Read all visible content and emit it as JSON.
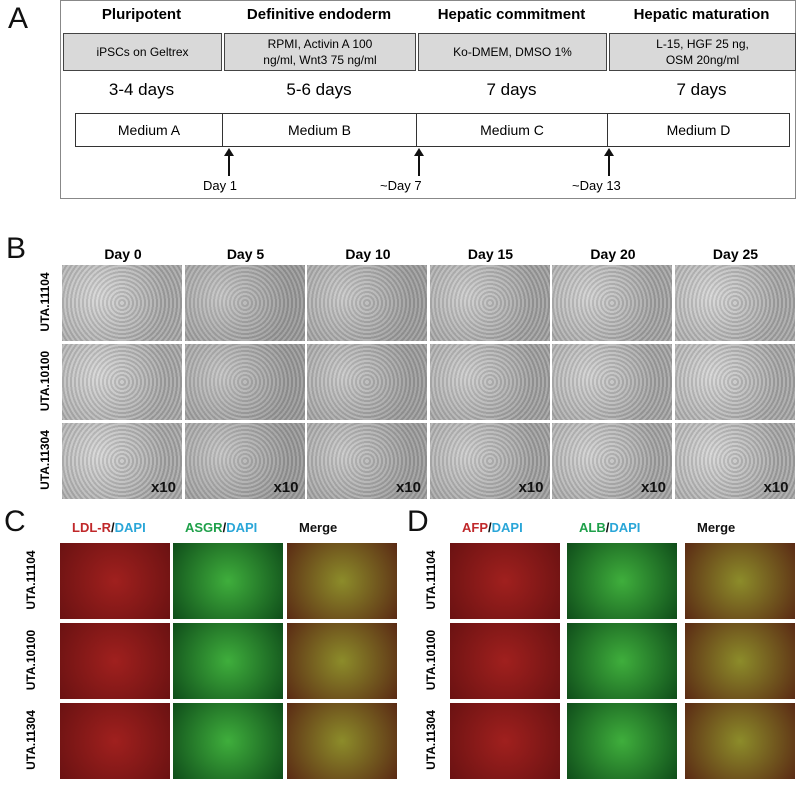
{
  "panel_a": {
    "label": "A",
    "stages": [
      "Pluripotent",
      "Definitive endoderm",
      "Hepatic commitment",
      "Hepatic maturation"
    ],
    "conditions": [
      [
        "iPSCs on Geltrex"
      ],
      [
        "RPMI, Activin A 100",
        "ng/ml, Wnt3 75  ng/ml"
      ],
      [
        "Ko-DMEM,  DMSO 1%"
      ],
      [
        "L-15, HGF 25 ng,",
        "OSM 20ng/ml"
      ]
    ],
    "durations": [
      "3-4 days",
      "5-6 days",
      "7 days",
      "7 days"
    ],
    "media": [
      "Medium A",
      "Medium B",
      "Medium C",
      "Medium D"
    ],
    "timepoints": [
      "Day 1",
      "~Day 7",
      "~Day 13"
    ]
  },
  "panel_b": {
    "label": "B",
    "days": [
      "Day 0",
      "Day 5",
      "Day 10",
      "Day 15",
      "Day 20",
      "Day 25"
    ],
    "rows": [
      "UTA.11104",
      "UTA.10100",
      "UTA.11304"
    ],
    "magnification": "x10"
  },
  "panel_c": {
    "label": "C",
    "cols": [
      {
        "marker": "LDL-R",
        "sep": "/",
        "stain": "DAPI"
      },
      {
        "marker": "ASGR",
        "sep": "/",
        "stain": "DAPI"
      },
      {
        "marker": "Merge"
      }
    ],
    "rows": [
      "UTA.11104",
      "UTA.10100",
      "UTA.11304"
    ]
  },
  "panel_d": {
    "label": "D",
    "cols": [
      {
        "marker": "AFP",
        "sep": "/",
        "stain": "DAPI"
      },
      {
        "marker": "ALB",
        "sep": "/",
        "stain": "DAPI"
      },
      {
        "marker": "Merge"
      }
    ],
    "rows": [
      "UTA.11104",
      "UTA.10100",
      "UTA.11304"
    ]
  },
  "colors": {
    "red_marker": "#c0282a",
    "green_marker": "#1fa04a",
    "dapi": "#2aa6d8"
  }
}
